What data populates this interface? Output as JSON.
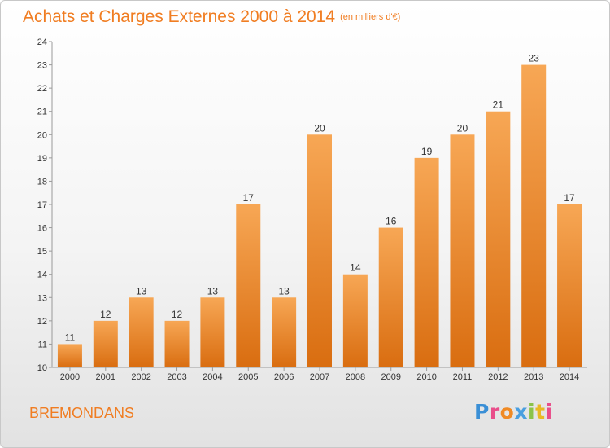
{
  "title": "Achats et Charges Externes 2000 à 2014",
  "subtitle": "(en milliers d'€)",
  "place": "BREMONDANS",
  "logo": {
    "letters": [
      "P",
      "r",
      "o",
      "x",
      "i",
      "t",
      "i"
    ],
    "colors": [
      "#3a8fd6",
      "#e94e8a",
      "#f08a24",
      "#4a9fe0",
      "#8bc34a",
      "#e9b924",
      "#e94e8a"
    ]
  },
  "colors": {
    "accent": "#f07d22",
    "bar_light": "#f7a755",
    "bar_dark": "#d96d10"
  },
  "chart_data": {
    "type": "bar",
    "categories": [
      "2000",
      "2001",
      "2002",
      "2003",
      "2004",
      "2005",
      "2006",
      "2007",
      "2008",
      "2009",
      "2010",
      "2011",
      "2012",
      "2013",
      "2014"
    ],
    "values": [
      11,
      12,
      13,
      12,
      13,
      17,
      13,
      20,
      14,
      16,
      19,
      20,
      21,
      23,
      17
    ],
    "ylim": [
      10,
      24
    ],
    "yticks": [
      10,
      11,
      12,
      13,
      14,
      15,
      16,
      17,
      18,
      19,
      20,
      21,
      22,
      23,
      24
    ],
    "grid": false,
    "xlabel": "",
    "ylabel": ""
  }
}
